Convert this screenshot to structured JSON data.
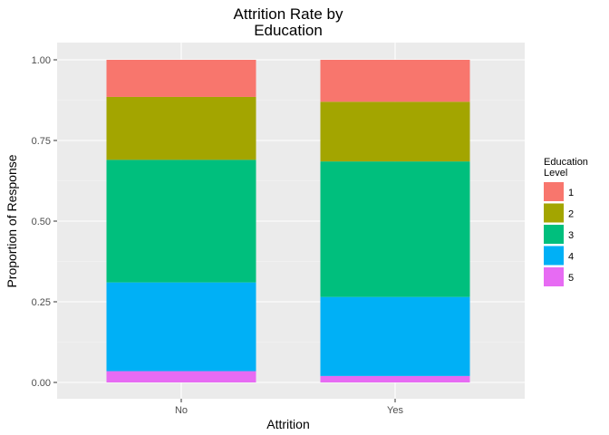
{
  "chart_data": {
    "type": "bar",
    "stacked": true,
    "title_lines": [
      "Attrition Rate by",
      "Education"
    ],
    "xlabel": "Attrition",
    "ylabel": "Proportion of Response",
    "categories": [
      "No",
      "Yes"
    ],
    "ylim": [
      0,
      1
    ],
    "yticks": [
      "0.00",
      "0.25",
      "0.50",
      "0.75",
      "1.00"
    ],
    "grid": true,
    "legend_title_lines": [
      "Education",
      "Level"
    ],
    "legend_position": "right",
    "series": [
      {
        "name": "1",
        "color": "#F8766D",
        "values": [
          0.115,
          0.13
        ]
      },
      {
        "name": "2",
        "color": "#A3A500",
        "values": [
          0.195,
          0.185
        ]
      },
      {
        "name": "3",
        "color": "#00BF7D",
        "values": [
          0.38,
          0.42
        ]
      },
      {
        "name": "4",
        "color": "#00B0F6",
        "values": [
          0.275,
          0.245
        ]
      },
      {
        "name": "5",
        "color": "#E76BF3",
        "values": [
          0.035,
          0.02
        ]
      }
    ]
  }
}
